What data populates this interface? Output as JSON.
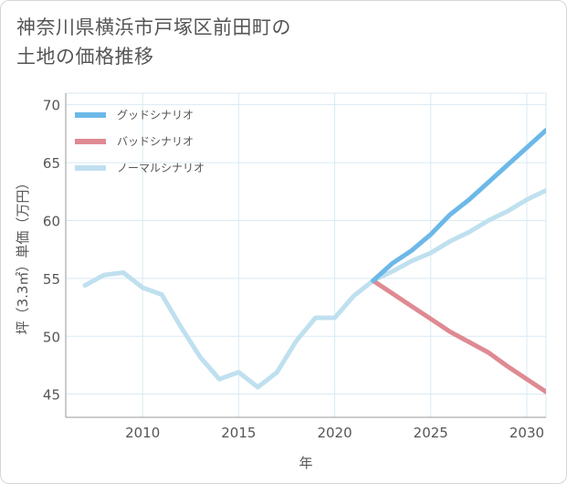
{
  "page": {
    "title_line1": "神奈川県横浜市戸塚区前田町の",
    "title_line2": "土地の価格推移"
  },
  "colors": {
    "good": "#6cb8e8",
    "bad": "#df8a92",
    "normal": "#bfe0ef",
    "grid": "#d8eaf3",
    "axis": "#999999",
    "text": "#555555"
  },
  "chart_data": {
    "type": "line",
    "xlabel": "年",
    "ylabel": "坪（3.3㎡）単価（万円）",
    "xlim": [
      2006,
      2031
    ],
    "ylim": [
      43,
      71
    ],
    "xticks": [
      2010,
      2015,
      2020,
      2025,
      2030
    ],
    "yticks": [
      45,
      50,
      55,
      60,
      65,
      70
    ],
    "grid": true,
    "legend_position": "top-left",
    "series": [
      {
        "name": "グッドシナリオ",
        "color_key": "good",
        "x": [
          2022,
          2023,
          2024,
          2025,
          2026,
          2027,
          2028,
          2029,
          2030,
          2031
        ],
        "y": [
          54.8,
          56.3,
          57.4,
          58.8,
          60.5,
          61.8,
          63.3,
          64.8,
          66.3,
          67.8
        ]
      },
      {
        "name": "バッドシナリオ",
        "color_key": "bad",
        "x": [
          2022,
          2023,
          2024,
          2025,
          2026,
          2027,
          2028,
          2029,
          2030,
          2031
        ],
        "y": [
          54.8,
          53.7,
          52.6,
          51.5,
          50.4,
          49.5,
          48.6,
          47.4,
          46.3,
          45.2
        ]
      },
      {
        "name": "ノーマルシナリオ",
        "color_key": "normal",
        "x": [
          2007,
          2008,
          2009,
          2010,
          2011,
          2012,
          2013,
          2014,
          2015,
          2016,
          2017,
          2018,
          2019,
          2020,
          2021,
          2022,
          2023,
          2024,
          2025,
          2026,
          2027,
          2028,
          2029,
          2030,
          2031
        ],
        "y": [
          54.4,
          55.3,
          55.5,
          54.2,
          53.6,
          50.8,
          48.2,
          46.3,
          46.9,
          45.6,
          46.9,
          49.6,
          51.6,
          51.6,
          53.5,
          54.8,
          55.6,
          56.5,
          57.2,
          58.2,
          59.0,
          60.0,
          60.8,
          61.8,
          62.6
        ]
      }
    ]
  }
}
